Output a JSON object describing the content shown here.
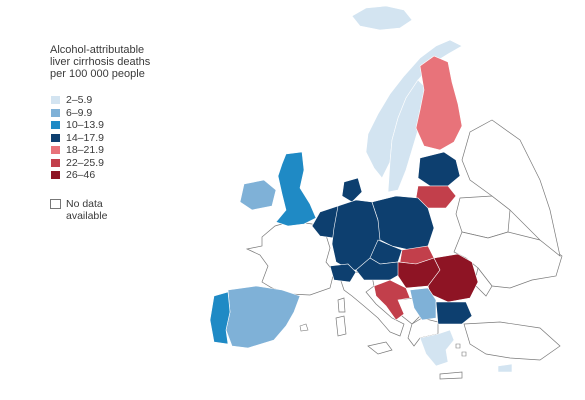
{
  "legend": {
    "title": "Alcohol-attributable\nliver cirrhosis deaths\nper 100 000 people",
    "classes": [
      {
        "label": "2–5.9",
        "color": "#d3e4f1"
      },
      {
        "label": "6–9.9",
        "color": "#7fb1d7"
      },
      {
        "label": "10–13.9",
        "color": "#1f8ac5"
      },
      {
        "label": "14–17.9",
        "color": "#0d3f6f"
      },
      {
        "label": "18–21.9",
        "color": "#e8737a"
      },
      {
        "label": "22–25.9",
        "color": "#c23f4b"
      },
      {
        "label": "26–46",
        "color": "#8e1424"
      }
    ],
    "no_data": {
      "label": "No data\navailable",
      "color": "#ffffff"
    }
  },
  "map": {
    "countries": [
      {
        "id": "iceland",
        "class": 1
      },
      {
        "id": "norway",
        "class": 1
      },
      {
        "id": "sweden",
        "class": 1
      },
      {
        "id": "finland",
        "class": 5
      },
      {
        "id": "estonia-latvia",
        "class": 4
      },
      {
        "id": "lithuania",
        "class": 6
      },
      {
        "id": "ireland",
        "class": 2
      },
      {
        "id": "great-britain",
        "class": 3
      },
      {
        "id": "denmark",
        "class": 4
      },
      {
        "id": "netherlands-belgium",
        "class": 4
      },
      {
        "id": "germany",
        "class": 4
      },
      {
        "id": "poland",
        "class": 4
      },
      {
        "id": "czechia",
        "class": 4
      },
      {
        "id": "austria",
        "class": 4
      },
      {
        "id": "switzerland",
        "class": 4
      },
      {
        "id": "slovakia",
        "class": 6
      },
      {
        "id": "hungary",
        "class": 7
      },
      {
        "id": "romania",
        "class": 7
      },
      {
        "id": "slovenia-croatia",
        "class": 6
      },
      {
        "id": "serbia",
        "class": 2
      },
      {
        "id": "bulgaria",
        "class": 4
      },
      {
        "id": "spain",
        "class": 2
      },
      {
        "id": "portugal",
        "class": 3
      },
      {
        "id": "greece",
        "class": 1
      },
      {
        "id": "cyprus",
        "class": 1
      }
    ]
  }
}
